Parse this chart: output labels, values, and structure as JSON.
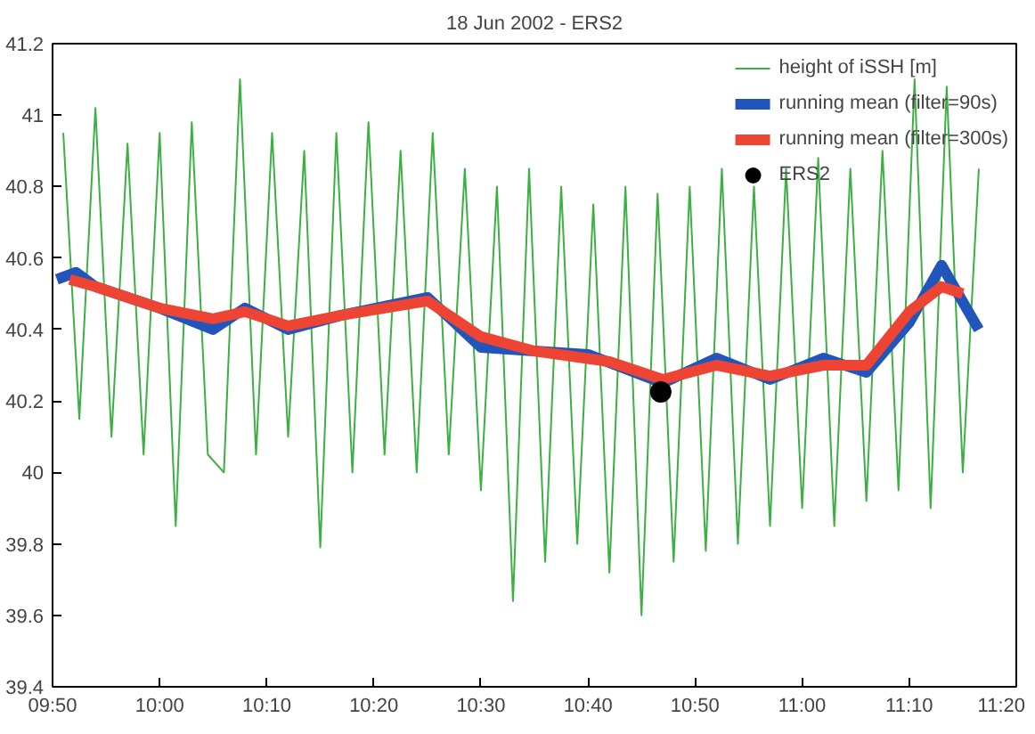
{
  "chart_data": {
    "type": "line",
    "title": "18 Jun 2002 - ERS2",
    "legend": "top right",
    "grid": false,
    "xlim": [
      9.8333,
      11.3333
    ],
    "ylim": [
      39.4,
      41.2
    ],
    "xticks": [
      {
        "value": 9.8333,
        "label": "09:50"
      },
      {
        "value": 10.0,
        "label": "10:00"
      },
      {
        "value": 10.1667,
        "label": "10:10"
      },
      {
        "value": 10.3333,
        "label": "10:20"
      },
      {
        "value": 10.5,
        "label": "10:30"
      },
      {
        "value": 10.6667,
        "label": "10:40"
      },
      {
        "value": 10.8333,
        "label": "10:50"
      },
      {
        "value": 11.0,
        "label": "11:00"
      },
      {
        "value": 11.1667,
        "label": "11:10"
      },
      {
        "value": 11.3333,
        "label": "11:20"
      }
    ],
    "yticks": [
      39.4,
      39.6,
      39.8,
      40,
      40.2,
      40.4,
      40.6,
      40.8,
      41,
      41.2
    ],
    "series": [
      {
        "name": "height of iSSH [m]",
        "color": "#3cb043",
        "x": [
          9.85,
          9.875,
          9.9,
          9.925,
          9.95,
          9.975,
          10.0,
          10.025,
          10.05,
          10.075,
          10.1,
          10.125,
          10.15,
          10.175,
          10.2,
          10.225,
          10.25,
          10.275,
          10.3,
          10.325,
          10.35,
          10.375,
          10.4,
          10.425,
          10.45,
          10.475,
          10.5,
          10.525,
          10.55,
          10.575,
          10.6,
          10.625,
          10.65,
          10.675,
          10.7,
          10.725,
          10.75,
          10.775,
          10.8,
          10.825,
          10.85,
          10.875,
          10.9,
          10.925,
          10.95,
          10.975,
          11.0,
          11.025,
          11.05,
          11.075,
          11.1,
          11.125,
          11.15,
          11.175,
          11.2,
          11.225,
          11.25,
          11.275
        ],
        "values": [
          40.95,
          40.15,
          41.02,
          40.1,
          40.92,
          40.05,
          40.95,
          39.85,
          40.98,
          40.05,
          40.0,
          41.1,
          40.05,
          40.95,
          40.1,
          40.9,
          39.79,
          40.95,
          40.0,
          40.98,
          40.05,
          40.9,
          40.0,
          40.95,
          40.05,
          40.85,
          39.95,
          40.8,
          39.64,
          40.85,
          39.75,
          40.8,
          39.8,
          40.75,
          39.72,
          40.8,
          39.6,
          40.78,
          39.75,
          40.8,
          39.78,
          40.85,
          39.8,
          40.8,
          39.85,
          40.85,
          39.9,
          40.88,
          39.85,
          40.85,
          39.92,
          40.9,
          39.95,
          41.1,
          39.9,
          41.08,
          40.0,
          40.85
        ]
      },
      {
        "name": "running mean (filter=90s)",
        "color": "#2255bb",
        "x": [
          9.84,
          9.87,
          9.9,
          10.0,
          10.083,
          10.133,
          10.2,
          10.283,
          10.417,
          10.5,
          10.583,
          10.667,
          10.783,
          10.867,
          10.95,
          11.033,
          11.1,
          11.167,
          11.217,
          11.275
        ],
        "values": [
          40.54,
          40.56,
          40.52,
          40.46,
          40.4,
          40.46,
          40.4,
          40.44,
          40.49,
          40.35,
          40.34,
          40.33,
          40.25,
          40.32,
          40.26,
          40.32,
          40.28,
          40.42,
          40.58,
          40.4
        ]
      },
      {
        "name": "running mean (filter=300s)",
        "color": "#ee4433",
        "x": [
          9.86,
          9.9,
          10.0,
          10.083,
          10.133,
          10.2,
          10.283,
          10.417,
          10.5,
          10.583,
          10.7,
          10.783,
          10.867,
          10.95,
          11.033,
          11.1,
          11.167,
          11.217,
          11.25
        ],
        "values": [
          40.54,
          40.52,
          40.46,
          40.43,
          40.45,
          40.41,
          40.44,
          40.48,
          40.38,
          40.34,
          40.31,
          40.26,
          40.3,
          40.27,
          40.3,
          40.3,
          40.45,
          40.52,
          40.5
        ]
      },
      {
        "name": "ERS2",
        "type": "scatter",
        "marker": "circle",
        "color": "#000000",
        "x": [
          10.78
        ],
        "values": [
          40.225
        ]
      }
    ]
  }
}
